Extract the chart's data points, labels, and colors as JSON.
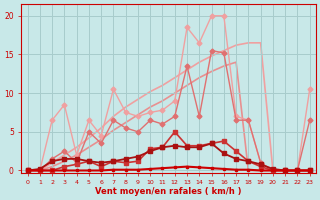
{
  "bg_color": "#c8e8e8",
  "grid_color": "#a8cccc",
  "xlabel": "Vent moyen/en rafales ( km/h )",
  "x_ticks": [
    0,
    1,
    2,
    3,
    4,
    5,
    6,
    7,
    8,
    9,
    10,
    11,
    12,
    13,
    14,
    15,
    16,
    17,
    18,
    19,
    20,
    21,
    22,
    23
  ],
  "y_ticks": [
    0,
    5,
    10,
    15,
    20
  ],
  "ylim": [
    -0.3,
    21.5
  ],
  "xlim": [
    -0.5,
    23.5
  ],
  "lines": [
    {
      "x": [
        0,
        1,
        2,
        3,
        4,
        5,
        6,
        7,
        8,
        9,
        10,
        11,
        12,
        13,
        14,
        15,
        16,
        17,
        18,
        19,
        20,
        21,
        22,
        23
      ],
      "y": [
        0,
        0,
        1.0,
        2.0,
        3.0,
        4.2,
        5.5,
        7.0,
        8.2,
        9.2,
        10.2,
        11.0,
        12.0,
        13.0,
        14.0,
        14.8,
        15.5,
        16.2,
        16.5,
        16.5,
        0,
        0,
        0,
        0
      ],
      "color": "#f0a0a0",
      "lw": 1.2,
      "marker": null,
      "ms": 0,
      "zorder": 1
    },
    {
      "x": [
        0,
        1,
        2,
        3,
        4,
        5,
        6,
        7,
        8,
        9,
        10,
        11,
        12,
        13,
        14,
        15,
        16,
        17,
        18,
        19,
        20,
        21,
        22,
        23
      ],
      "y": [
        0,
        0,
        0.5,
        1.2,
        2.0,
        3.0,
        4.0,
        5.2,
        6.2,
        7.2,
        8.2,
        9.0,
        10.0,
        11.0,
        12.0,
        12.8,
        13.5,
        14.0,
        0,
        0,
        0,
        0,
        0,
        0
      ],
      "color": "#e89090",
      "lw": 1.2,
      "marker": null,
      "ms": 0,
      "zorder": 1
    },
    {
      "x": [
        0,
        1,
        2,
        3,
        4,
        5,
        6,
        7,
        8,
        9,
        10,
        11,
        12,
        13,
        14,
        15,
        16,
        17,
        18,
        19,
        20,
        21,
        22,
        23
      ],
      "y": [
        0,
        0,
        6.5,
        8.5,
        2.0,
        6.5,
        4.5,
        10.5,
        7.5,
        7.0,
        7.5,
        7.8,
        9.0,
        18.5,
        16.5,
        20.0,
        20.0,
        7.0,
        6.5,
        1.0,
        0,
        0,
        0,
        10.5
      ],
      "color": "#f0a0a0",
      "lw": 1.0,
      "marker": "D",
      "ms": 2.5,
      "zorder": 2
    },
    {
      "x": [
        0,
        1,
        2,
        3,
        4,
        5,
        6,
        7,
        8,
        9,
        10,
        11,
        12,
        13,
        14,
        15,
        16,
        17,
        18,
        19,
        20,
        21,
        22,
        23
      ],
      "y": [
        0,
        0,
        1.5,
        2.5,
        1.0,
        5.0,
        3.5,
        6.5,
        5.5,
        5.0,
        6.5,
        6.0,
        7.0,
        13.5,
        7.0,
        15.5,
        15.2,
        6.5,
        6.5,
        1.0,
        0,
        0,
        0,
        6.5
      ],
      "color": "#e07070",
      "lw": 1.0,
      "marker": "D",
      "ms": 2.5,
      "zorder": 2
    },
    {
      "x": [
        0,
        1,
        2,
        3,
        4,
        5,
        6,
        7,
        8,
        9,
        10,
        11,
        12,
        13,
        14,
        15,
        16,
        17,
        18,
        19,
        20,
        21,
        22,
        23
      ],
      "y": [
        0,
        0,
        0,
        0.5,
        0.8,
        1.2,
        0.5,
        1.2,
        1.0,
        1.2,
        2.8,
        3.0,
        5.0,
        3.2,
        3.2,
        3.5,
        3.8,
        2.5,
        1.2,
        0.5,
        0,
        0,
        0,
        0
      ],
      "color": "#cc3333",
      "lw": 1.2,
      "marker": "s",
      "ms": 2.5,
      "zorder": 3
    },
    {
      "x": [
        0,
        1,
        2,
        3,
        4,
        5,
        6,
        7,
        8,
        9,
        10,
        11,
        12,
        13,
        14,
        15,
        16,
        17,
        18,
        19,
        20,
        21,
        22,
        23
      ],
      "y": [
        0,
        0.2,
        1.2,
        1.5,
        1.5,
        1.2,
        1.0,
        1.2,
        1.5,
        1.8,
        2.5,
        3.0,
        3.2,
        3.0,
        3.0,
        3.5,
        2.2,
        1.5,
        1.2,
        0.8,
        0.2,
        0,
        0,
        0
      ],
      "color": "#aa1111",
      "lw": 1.3,
      "marker": "s",
      "ms": 2.5,
      "zorder": 3
    },
    {
      "x": [
        0,
        1,
        2,
        3,
        4,
        5,
        6,
        7,
        8,
        9,
        10,
        11,
        12,
        13,
        14,
        15,
        16,
        17,
        18,
        19,
        20,
        21,
        22,
        23
      ],
      "y": [
        0,
        0,
        0,
        0,
        0,
        0,
        0,
        0.1,
        0.1,
        0.1,
        0.2,
        0.3,
        0.4,
        0.5,
        0.4,
        0.3,
        0.2,
        0.1,
        0.1,
        0,
        0,
        0,
        0,
        0
      ],
      "color": "#cc0000",
      "lw": 1.5,
      "marker": "s",
      "ms": 2,
      "zorder": 4
    }
  ]
}
